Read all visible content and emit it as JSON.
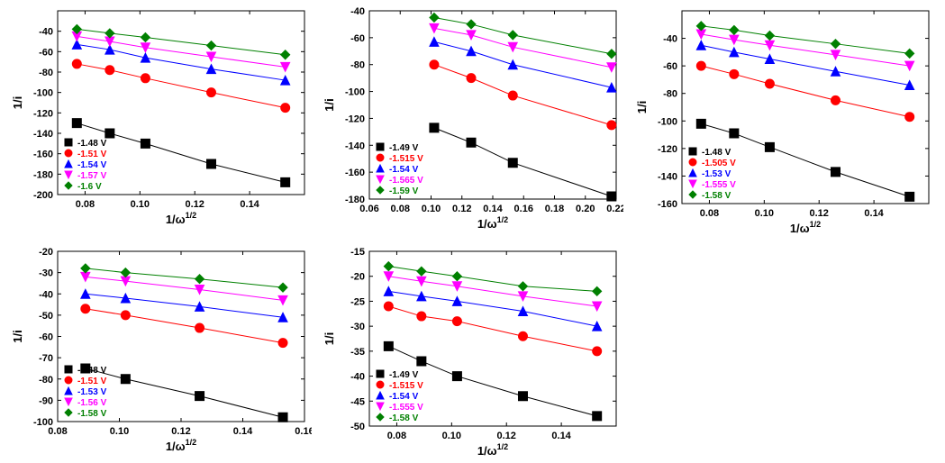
{
  "figure": {
    "background_color": "#ffffff",
    "axis_color": "#000000",
    "tick_length": 4,
    "tick_fontsize": 11,
    "label_fontsize": 13,
    "legend_fontsize": 10,
    "marker_size": 5,
    "line_width": 1,
    "font_weight": "bold",
    "xlabel": "1/ω",
    "xlabel_sup": "1/2",
    "ylabel": "1/i",
    "series_colors": {
      "s1": "#000000",
      "s2": "#ff0000",
      "s3": "#0000ff",
      "s4": "#ff00ff",
      "s5": "#008000"
    },
    "series_markers": {
      "s1": "square",
      "s2": "circle",
      "s3": "triangle-up",
      "s4": "triangle-down",
      "s5": "diamond"
    }
  },
  "panels": [
    {
      "id": "A",
      "xlim": [
        0.07,
        0.16
      ],
      "ylim": [
        -200,
        -20
      ],
      "xticks": [
        0.08,
        0.1,
        0.12,
        0.14
      ],
      "yticks": [
        -200,
        -180,
        -160,
        -140,
        -120,
        -100,
        -80,
        -60,
        -40
      ],
      "legend_pos": "inside-lower-left",
      "series": [
        {
          "key": "s1",
          "label": "-1.48 V",
          "x": [
            0.077,
            0.089,
            0.102,
            0.126,
            0.153
          ],
          "y": [
            -130,
            -140,
            -150,
            -170,
            -188
          ]
        },
        {
          "key": "s2",
          "label": "-1.51 V",
          "x": [
            0.077,
            0.089,
            0.102,
            0.126,
            0.153
          ],
          "y": [
            -72,
            -78,
            -86,
            -100,
            -115
          ]
        },
        {
          "key": "s3",
          "label": "-1.54 V",
          "x": [
            0.077,
            0.089,
            0.102,
            0.126,
            0.153
          ],
          "y": [
            -53,
            -58,
            -66,
            -77,
            -88
          ]
        },
        {
          "key": "s4",
          "label": "-1.57 V",
          "x": [
            0.077,
            0.089,
            0.102,
            0.126,
            0.153
          ],
          "y": [
            -45,
            -50,
            -56,
            -65,
            -75
          ]
        },
        {
          "key": "s5",
          "label": "-1.6 V",
          "x": [
            0.077,
            0.089,
            0.102,
            0.126,
            0.153
          ],
          "y": [
            -38,
            -42,
            -46,
            -54,
            -63
          ]
        }
      ]
    },
    {
      "id": "B",
      "xlim": [
        0.06,
        0.22
      ],
      "ylim": [
        -180,
        -40
      ],
      "xticks": [
        0.06,
        0.08,
        0.1,
        0.12,
        0.14,
        0.16,
        0.18,
        0.2,
        0.22
      ],
      "yticks": [
        -180,
        -160,
        -140,
        -120,
        -100,
        -80,
        -60,
        -40
      ],
      "legend_pos": "inside-lower-left",
      "series": [
        {
          "key": "s1",
          "label": "-1.49 V",
          "x": [
            0.102,
            0.126,
            0.153,
            0.217
          ],
          "y": [
            -127,
            -138,
            -153,
            -178
          ]
        },
        {
          "key": "s2",
          "label": "-1.515 V",
          "x": [
            0.102,
            0.126,
            0.153,
            0.217
          ],
          "y": [
            -80,
            -90,
            -103,
            -125
          ]
        },
        {
          "key": "s3",
          "label": "-1.54 V",
          "x": [
            0.102,
            0.126,
            0.153,
            0.217
          ],
          "y": [
            -63,
            -70,
            -80,
            -97
          ]
        },
        {
          "key": "s4",
          "label": "-1.565 V",
          "x": [
            0.102,
            0.126,
            0.153,
            0.217
          ],
          "y": [
            -53,
            -58,
            -67,
            -82
          ]
        },
        {
          "key": "s5",
          "label": "-1.59 V",
          "x": [
            0.102,
            0.126,
            0.153,
            0.217
          ],
          "y": [
            -45,
            -50,
            -58,
            -72
          ]
        }
      ]
    },
    {
      "id": "C",
      "xlim": [
        0.07,
        0.16
      ],
      "ylim": [
        -160,
        -20
      ],
      "xticks": [
        0.08,
        0.1,
        0.12,
        0.14
      ],
      "yticks": [
        -160,
        -140,
        -120,
        -100,
        -80,
        -60,
        -40
      ],
      "legend_pos": "inside-lower-left",
      "series": [
        {
          "key": "s1",
          "label": "-1.48 V",
          "x": [
            0.077,
            0.089,
            0.102,
            0.126,
            0.153
          ],
          "y": [
            -102,
            -109,
            -119,
            -137,
            -155
          ]
        },
        {
          "key": "s2",
          "label": "-1.505 V",
          "x": [
            0.077,
            0.089,
            0.102,
            0.126,
            0.153
          ],
          "y": [
            -60,
            -66,
            -73,
            -85,
            -97
          ]
        },
        {
          "key": "s3",
          "label": "-1.53 V",
          "x": [
            0.077,
            0.089,
            0.102,
            0.126,
            0.153
          ],
          "y": [
            -45,
            -50,
            -55,
            -64,
            -74
          ]
        },
        {
          "key": "s4",
          "label": "-1.555 V",
          "x": [
            0.077,
            0.089,
            0.102,
            0.126,
            0.153
          ],
          "y": [
            -37,
            -41,
            -45,
            -52,
            -60
          ]
        },
        {
          "key": "s5",
          "label": "-1.58 V",
          "x": [
            0.077,
            0.089,
            0.102,
            0.126,
            0.153
          ],
          "y": [
            -31,
            -34,
            -38,
            -44,
            -51
          ]
        }
      ]
    },
    {
      "id": "D",
      "xlim": [
        0.08,
        0.16
      ],
      "ylim": [
        -100,
        -20
      ],
      "xticks": [
        0.08,
        0.1,
        0.12,
        0.14,
        0.16
      ],
      "yticks": [
        -100,
        -90,
        -80,
        -70,
        -60,
        -50,
        -40,
        -30,
        -20
      ],
      "legend_pos": "inside-lower-left",
      "series": [
        {
          "key": "s1",
          "label": "-1.48 V",
          "x": [
            0.089,
            0.102,
            0.126,
            0.153
          ],
          "y": [
            -75,
            -80,
            -88,
            -98
          ]
        },
        {
          "key": "s2",
          "label": "-1.51 V",
          "x": [
            0.089,
            0.102,
            0.126,
            0.153
          ],
          "y": [
            -47,
            -50,
            -56,
            -63
          ]
        },
        {
          "key": "s3",
          "label": "-1.53 V",
          "x": [
            0.089,
            0.102,
            0.126,
            0.153
          ],
          "y": [
            -40,
            -42,
            -46,
            -51
          ]
        },
        {
          "key": "s4",
          "label": "-1.56 V",
          "x": [
            0.089,
            0.102,
            0.126,
            0.153
          ],
          "y": [
            -32,
            -34,
            -38,
            -43
          ]
        },
        {
          "key": "s5",
          "label": "-1.58 V",
          "x": [
            0.089,
            0.102,
            0.126,
            0.153
          ],
          "y": [
            -28,
            -30,
            -33,
            -37
          ]
        }
      ]
    },
    {
      "id": "E",
      "xlim": [
        0.07,
        0.16
      ],
      "ylim": [
        -50,
        -15
      ],
      "xticks": [
        0.08,
        0.1,
        0.12,
        0.14
      ],
      "yticks": [
        -50,
        -45,
        -40,
        -35,
        -30,
        -25,
        -20,
        -15
      ],
      "legend_pos": "inside-lower-left",
      "series": [
        {
          "key": "s1",
          "label": "-1.49 V",
          "x": [
            0.077,
            0.089,
            0.102,
            0.126,
            0.153
          ],
          "y": [
            -34,
            -37,
            -40,
            -44,
            -48
          ]
        },
        {
          "key": "s2",
          "label": "-1.515 V",
          "x": [
            0.077,
            0.089,
            0.102,
            0.126,
            0.153
          ],
          "y": [
            -26,
            -28,
            -29,
            -32,
            -35
          ]
        },
        {
          "key": "s3",
          "label": "-1.54 V",
          "x": [
            0.077,
            0.089,
            0.102,
            0.126,
            0.153
          ],
          "y": [
            -23,
            -24,
            -25,
            -27,
            -30
          ]
        },
        {
          "key": "s4",
          "label": "-1.555 V",
          "x": [
            0.077,
            0.089,
            0.102,
            0.126,
            0.153
          ],
          "y": [
            -20,
            -21,
            -22,
            -24,
            -26
          ]
        },
        {
          "key": "s5",
          "label": "-1.58 V",
          "x": [
            0.077,
            0.089,
            0.102,
            0.126,
            0.153
          ],
          "y": [
            -18,
            -19,
            -20,
            -22,
            -23
          ]
        }
      ]
    }
  ]
}
